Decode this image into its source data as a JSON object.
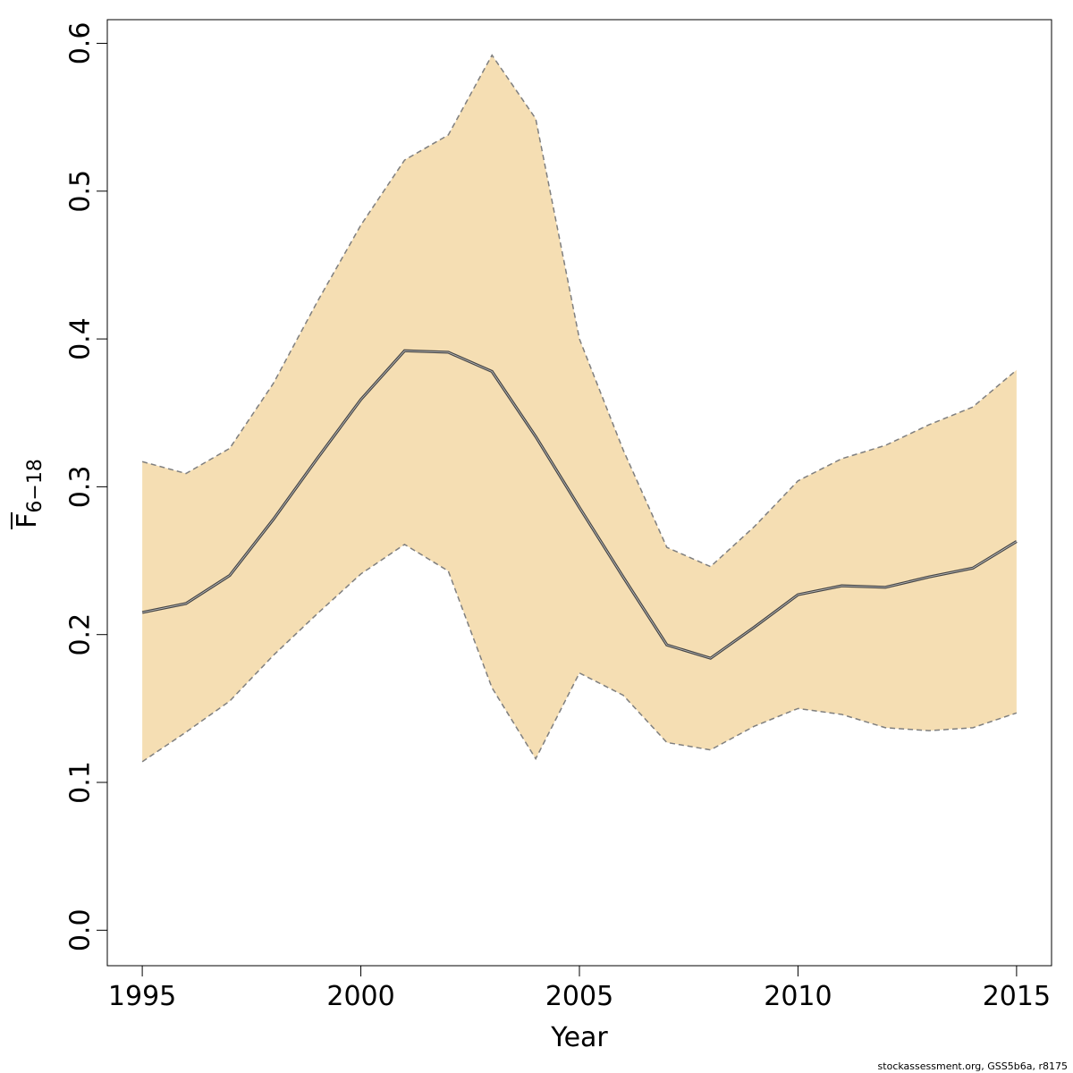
{
  "chart_data": {
    "type": "area",
    "x": [
      1995,
      1996,
      1997,
      1998,
      1999,
      2000,
      2001,
      2002,
      2003,
      2004,
      2005,
      2006,
      2007,
      2008,
      2009,
      2010,
      2011,
      2012,
      2013,
      2014,
      2015
    ],
    "series": [
      {
        "role": "estimate",
        "values": [
          0.215,
          0.221,
          0.24,
          0.278,
          0.319,
          0.359,
          0.392,
          0.391,
          0.378,
          0.334,
          0.286,
          0.239,
          0.193,
          0.184,
          0.205,
          0.227,
          0.233,
          0.232,
          0.239,
          0.245,
          0.263
        ]
      },
      {
        "role": "upper",
        "values": [
          0.317,
          0.309,
          0.326,
          0.37,
          0.425,
          0.477,
          0.521,
          0.538,
          0.592,
          0.549,
          0.4,
          0.325,
          0.259,
          0.246,
          0.273,
          0.304,
          0.319,
          0.328,
          0.342,
          0.354,
          0.379
        ]
      },
      {
        "role": "lower",
        "values": [
          0.114,
          0.134,
          0.155,
          0.186,
          0.214,
          0.241,
          0.261,
          0.243,
          0.164,
          0.116,
          0.174,
          0.159,
          0.127,
          0.122,
          0.138,
          0.15,
          0.146,
          0.137,
          0.135,
          0.137,
          0.147
        ]
      }
    ],
    "xlabel": "Year",
    "ylabel_main": "F",
    "ylabel_sub": "6−18",
    "xlim": [
      1994.2,
      2015.8
    ],
    "ylim": [
      -0.024,
      0.616
    ],
    "x_ticks": [
      "1995",
      "2000",
      "2005",
      "2010",
      "2015"
    ],
    "y_ticks": [
      "0.0",
      "0.1",
      "0.2",
      "0.3",
      "0.4",
      "0.5",
      "0.6"
    ],
    "grid": false,
    "colors": {
      "band": "#F5DEB3",
      "band_edge": "#7f7f7f",
      "line": "#444444",
      "axis": "#000000"
    }
  },
  "credit": "stockassessment.org, GSS5b6a, r8175"
}
